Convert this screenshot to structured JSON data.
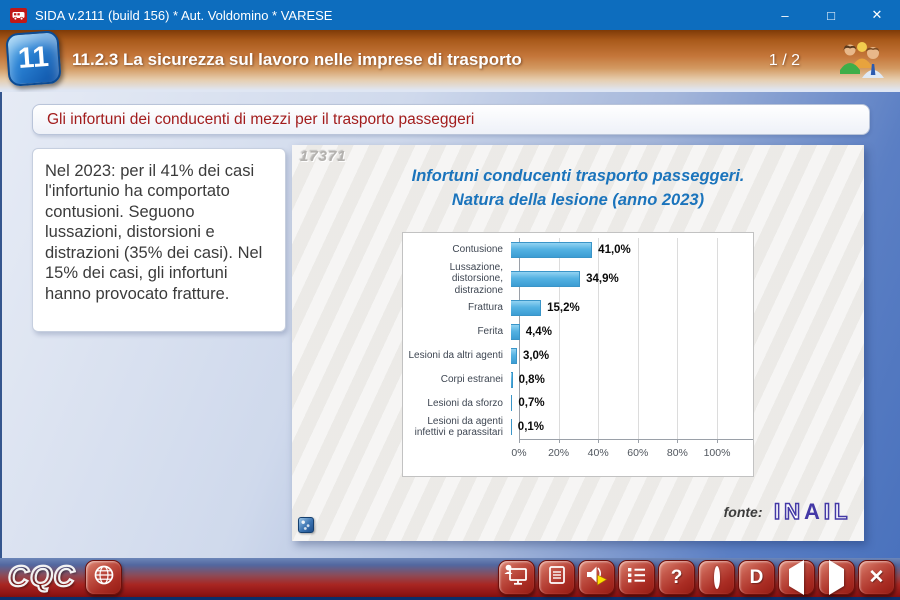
{
  "window": {
    "title": "SIDA v.2111 (build 156) * Aut. Voldomino * VARESE",
    "minimize_glyph": "–",
    "maximize_glyph": "□",
    "close_glyph": "✕"
  },
  "header": {
    "badge": "11",
    "title": "11.2.3 La sicurezza sul lavoro nelle imprese di trasporto",
    "page_indicator": "1 / 2"
  },
  "subtitle": "Gli infortuni dei conducenti di mezzi per il trasporto passeggeri",
  "info_panel": {
    "text": "Nel 2023: per il 41% dei casi l'infortunio ha comportato contusioni. Seguono lussazioni, distorsioni e distrazioni (35% dei casi). Nel 15% dei casi, gli infortuni hanno provocato fratture."
  },
  "chart_panel": {
    "watermark": "17371",
    "source_label": "fonte:",
    "source_logo": "INAIL"
  },
  "chart_data": {
    "type": "bar",
    "orientation": "horizontal",
    "title_line1": "Infortuni conducenti trasporto passeggeri.",
    "title_line2": "Natura della lesione (anno 2023)",
    "categories": [
      "Contusione",
      "Lussazione, distorsione, distrazione",
      "Frattura",
      "Ferita",
      "Lesioni da altri agenti",
      "Corpi estranei",
      "Lesioni da sforzo",
      "Lesioni da agenti infettivi e parassitari"
    ],
    "values": [
      41.0,
      34.9,
      15.2,
      4.4,
      3.0,
      0.8,
      0.7,
      0.1
    ],
    "value_labels": [
      "41,0%",
      "34,9%",
      "15,2%",
      "4,4%",
      "3,0%",
      "0,8%",
      "0,7%",
      "0,1%"
    ],
    "x_ticks": [
      0,
      20,
      40,
      60,
      80,
      100
    ],
    "x_tick_labels": [
      "0%",
      "20%",
      "40%",
      "60%",
      "80%",
      "100%"
    ],
    "xlim": [
      0,
      100
    ],
    "grid": true,
    "bar_color": "#4fb0e1",
    "legend": "none"
  },
  "toolbar": {
    "logo": "CQC",
    "left_button": {
      "name": "globe",
      "icon": "globe-icon"
    },
    "buttons": [
      {
        "name": "presentation",
        "icon": "presentation-icon"
      },
      {
        "name": "document",
        "icon": "document-icon"
      },
      {
        "name": "audio",
        "icon": "speaker-icon"
      },
      {
        "name": "topics-list",
        "icon": "list-icon"
      },
      {
        "name": "help",
        "icon": "question-icon",
        "glyph": "?"
      },
      {
        "name": "record",
        "icon": "record-icon"
      },
      {
        "name": "dictionary",
        "icon": "letter-d-icon",
        "glyph": "D"
      },
      {
        "name": "previous",
        "icon": "arrow-left-icon"
      },
      {
        "name": "next",
        "icon": "arrow-right-icon"
      },
      {
        "name": "close",
        "icon": "close-icon",
        "glyph": "✕"
      }
    ]
  },
  "colors": {
    "titlebar_blue": "#0d6dbe",
    "header_orange": "#c4763a",
    "subtitle_red": "#a21c1c",
    "chart_title_blue": "#1b74bc",
    "bar_blue": "#4fb0e1",
    "toolbar_red": "#a82622",
    "inail_purple": "#4439a6"
  }
}
